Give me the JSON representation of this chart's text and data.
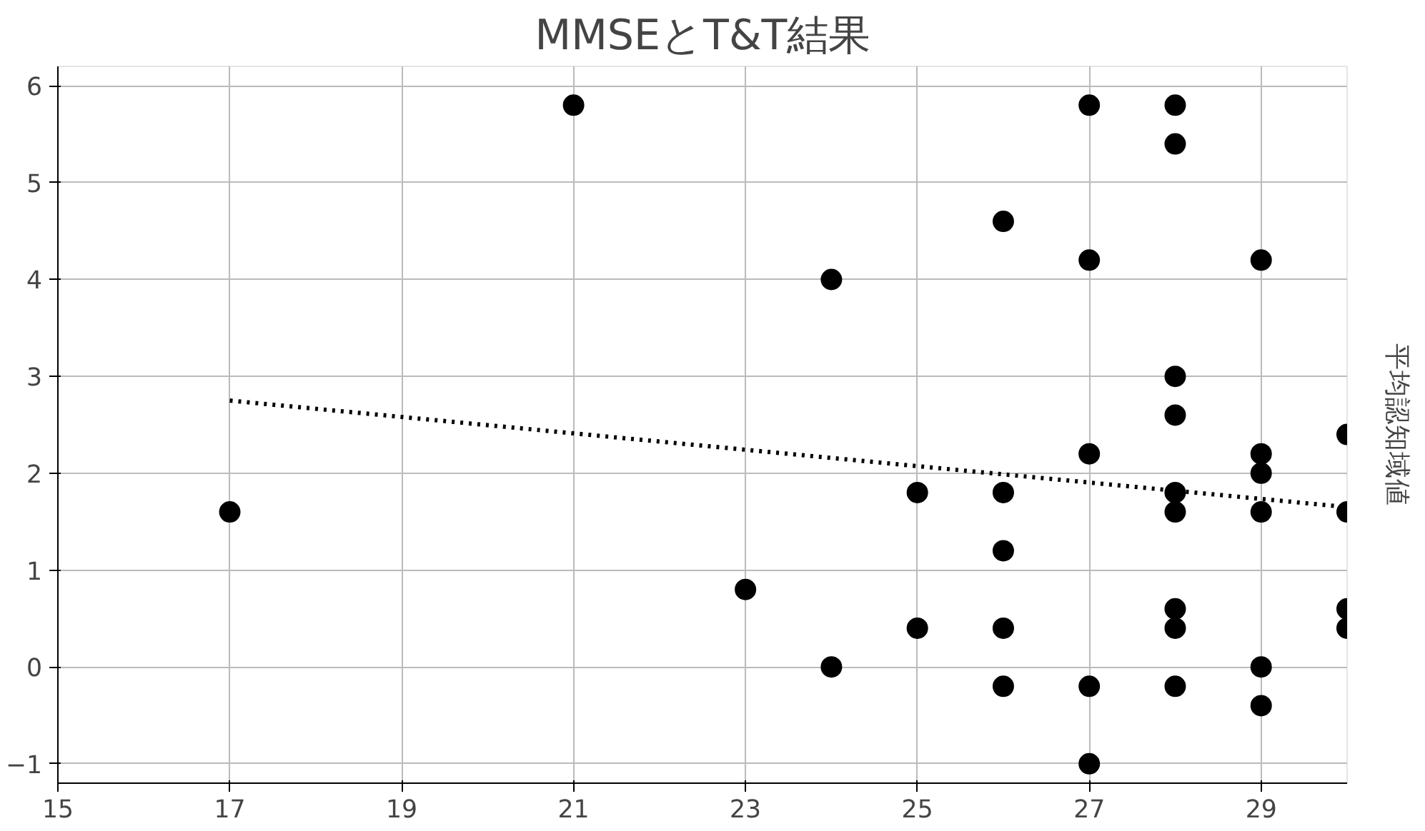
{
  "chart_data": {
    "type": "scatter",
    "title": "MMSEとT&T結果",
    "ylabel": "平均認知域値",
    "xlim": [
      15,
      30
    ],
    "ylim": [
      -1.2,
      6.2
    ],
    "xticks": [
      15,
      17,
      19,
      21,
      23,
      25,
      27,
      29
    ],
    "yticks": [
      -1,
      0,
      1,
      2,
      3,
      4,
      5,
      6
    ],
    "grid": true,
    "marker": "circle",
    "series": [
      {
        "color": "#000000",
        "x": [
          17,
          21,
          23,
          24,
          24,
          25,
          25,
          26,
          26,
          26,
          26,
          26,
          27,
          27,
          27,
          27,
          27,
          28,
          28,
          28,
          28,
          28,
          28,
          28,
          28,
          28,
          29,
          29,
          29,
          29,
          29,
          29,
          30,
          30,
          30,
          30
        ],
        "values": [
          1.6,
          5.8,
          0.8,
          4.0,
          0,
          1.8,
          0.4,
          4.6,
          1.8,
          1.2,
          0.4,
          -0.2,
          5.8,
          4.2,
          2.2,
          -0.2,
          -1.0,
          5.8,
          5.4,
          3.0,
          2.6,
          1.8,
          1.6,
          0.6,
          0.4,
          -0.2,
          4.2,
          2.2,
          2.0,
          1.6,
          0,
          -0.4,
          2.4,
          1.6,
          0.6,
          0.4
        ]
      },
      {
        "type": "line",
        "color": "#000000",
        "line_style": "dotted",
        "marker": "none",
        "x": [
          17,
          30
        ],
        "values": [
          2.75,
          1.65
        ]
      }
    ]
  }
}
